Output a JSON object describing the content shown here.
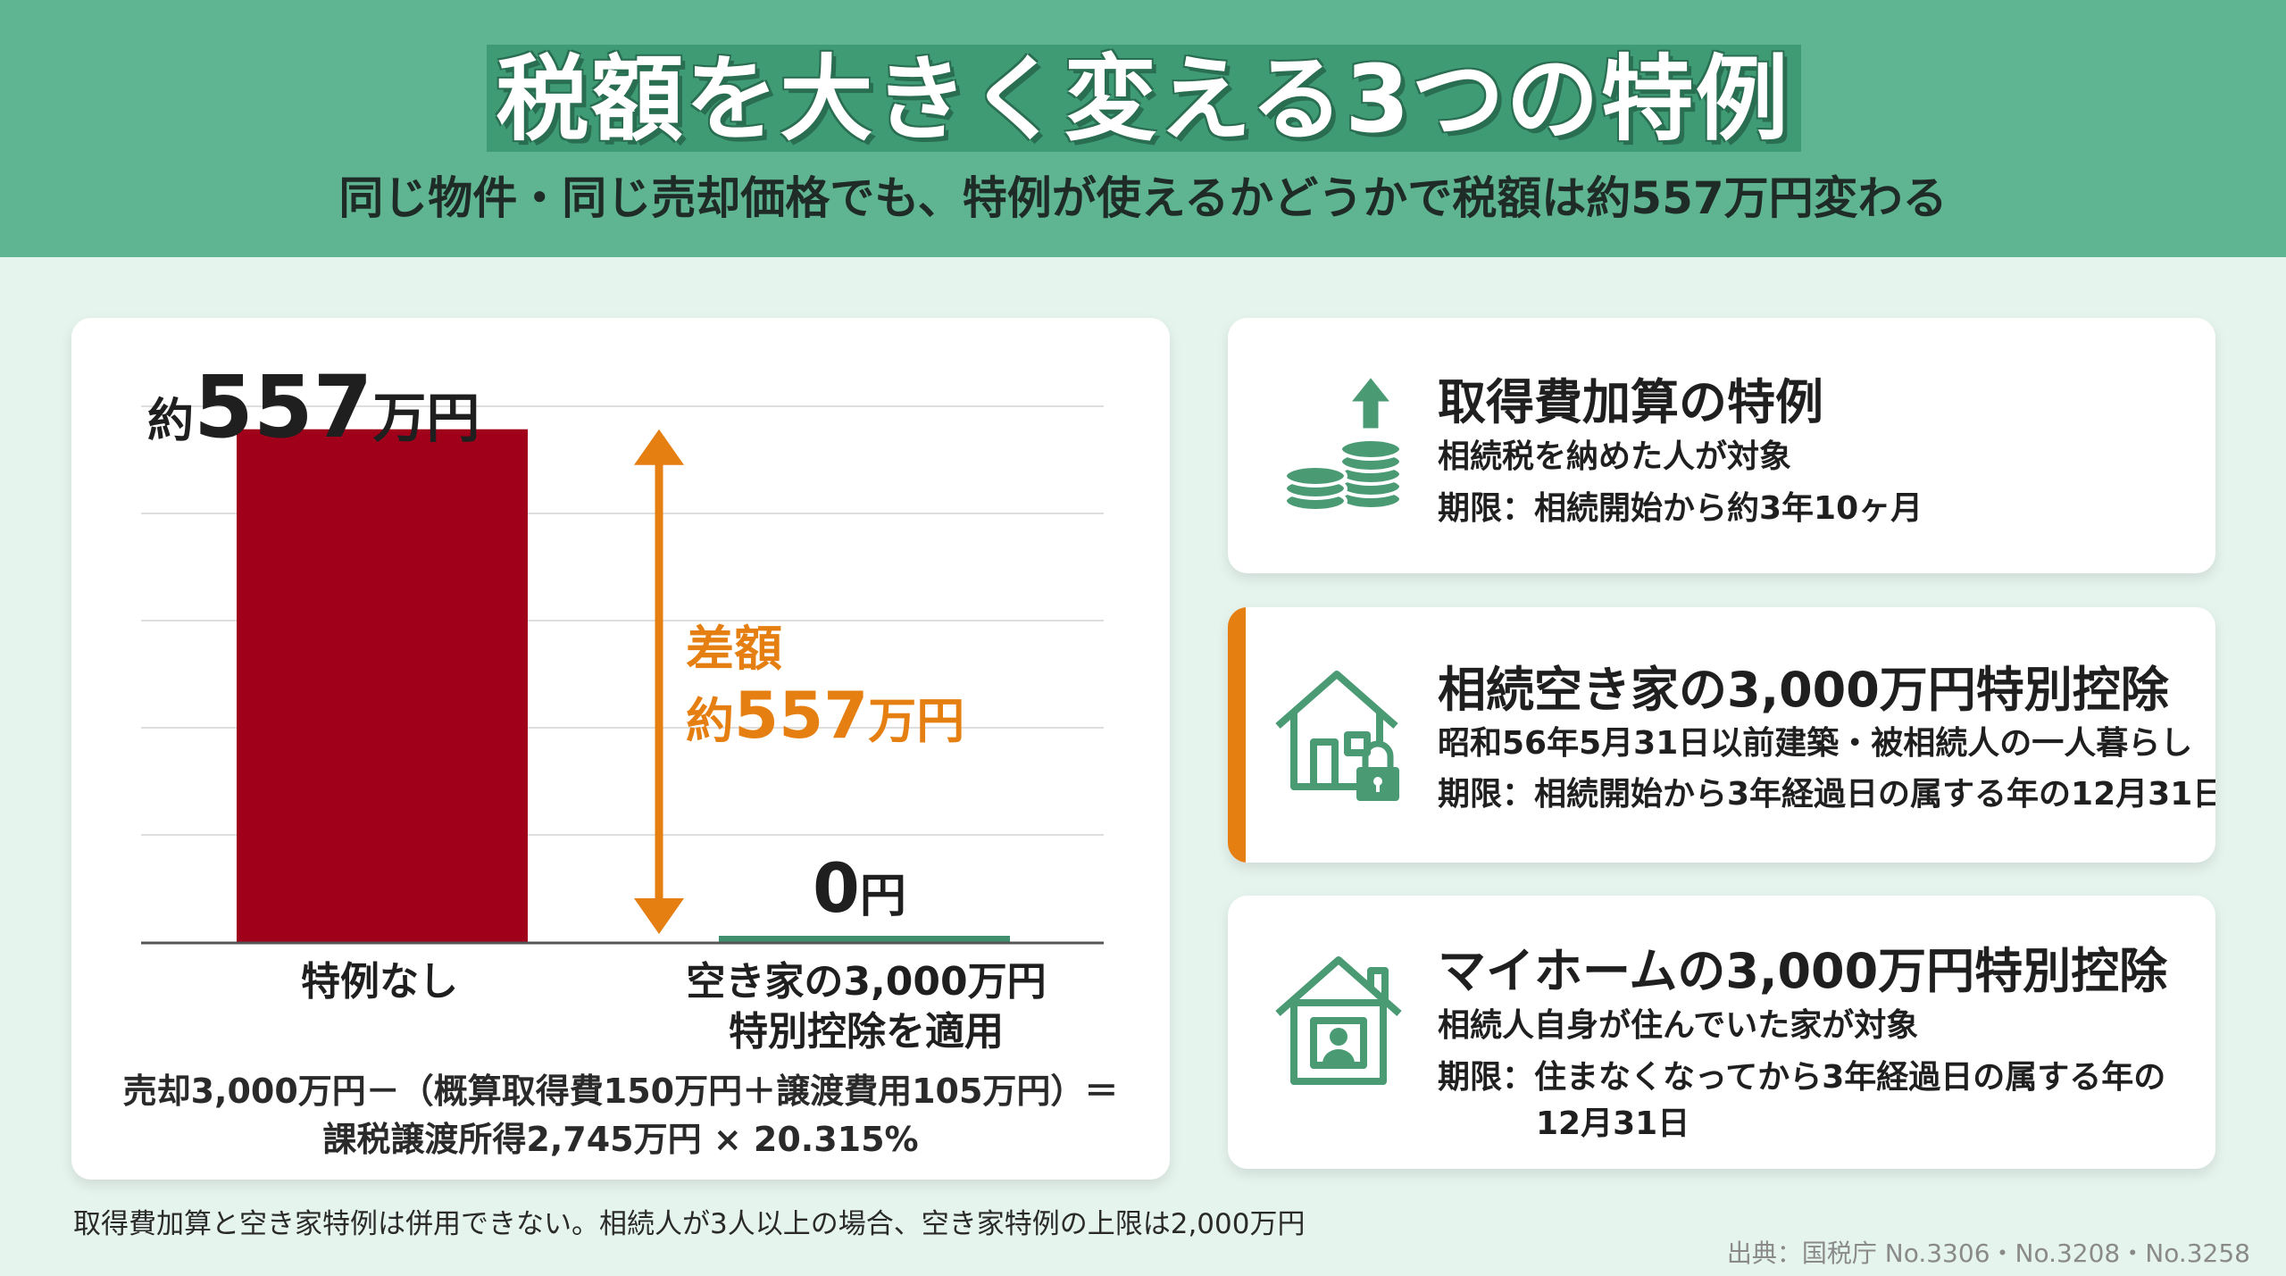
{
  "header": {
    "title": "税額を大きく変える3つの特例",
    "subtitle": "同じ物件・同じ売却価格でも、特例が使えるかどうかで税額は約557万円変わる"
  },
  "colors": {
    "header_bg": "#5fb592",
    "title_band": "#3f9b74",
    "bar_no_special": "#a0001a",
    "bar_special": "#3f8f6f",
    "accent_orange": "#e57f12",
    "icon_green": "#4a9a74"
  },
  "chart_data": {
    "type": "bar",
    "categories": [
      "特例なし",
      "空き家の3,000万円特別控除を適用"
    ],
    "values": [
      557,
      0
    ],
    "unit": "万円",
    "ylim": [
      0,
      640
    ],
    "grid": true,
    "bar_labels": [
      {
        "prefix": "約",
        "number": "557",
        "unit": "万円"
      },
      {
        "prefix": "",
        "number": "0",
        "unit": "円"
      }
    ],
    "category_label_lines": [
      [
        "特例なし"
      ],
      [
        "空き家の3,000万円",
        "特別控除を適用"
      ]
    ],
    "annotation": {
      "line1": "差額",
      "prefix": "約",
      "number": "557",
      "unit": "万円"
    },
    "formula": {
      "line1": "売却3,000万円－（概算取得費150万円＋譲渡費用105万円）＝",
      "line2": "課税譲渡所得2,745万円 × 20.315%"
    }
  },
  "cards": [
    {
      "title": "取得費加算の特例",
      "lines": [
        "相続税を納めた人が対象",
        "期限：相続開始から約3年10ヶ月"
      ],
      "icon": "coins-up-icon",
      "highlighted": false
    },
    {
      "title": "相続空き家の3,000万円特別控除",
      "lines": [
        "昭和56年5月31日以前建築・被相続人の一人暮らし",
        "期限：相続開始から3年経過日の属する年の12月31日"
      ],
      "icon": "house-lock-icon",
      "highlighted": true
    },
    {
      "title": "マイホームの3,000万円特別控除",
      "lines": [
        "相続人自身が住んでいた家が対象",
        "期限：住まなくなってから3年経過日の属する年の",
        "12月31日"
      ],
      "icon": "house-person-icon",
      "highlighted": false
    }
  ],
  "footnote": "取得費加算と空き家特例は併用できない。相続人が3人以上の場合、空き家特例の上限は2,000万円",
  "source": "出典：国税庁 No.3306・No.3208・No.3258"
}
